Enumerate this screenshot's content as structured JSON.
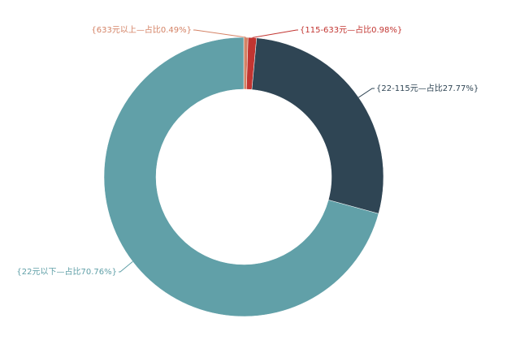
{
  "chart_data": {
    "type": "pie",
    "values": [
      0.49,
      0.98,
      27.77,
      70.76
    ],
    "value_labels": [
      "{633元以上—占比0.49%}",
      "{115-633元—占比0.98%}",
      "{22-115元—占比27.77%}",
      "{22元以下—占比70.76%}"
    ],
    "colors": [
      "#d48265",
      "#c23531",
      "#2f4554",
      "#61a0a8"
    ]
  }
}
